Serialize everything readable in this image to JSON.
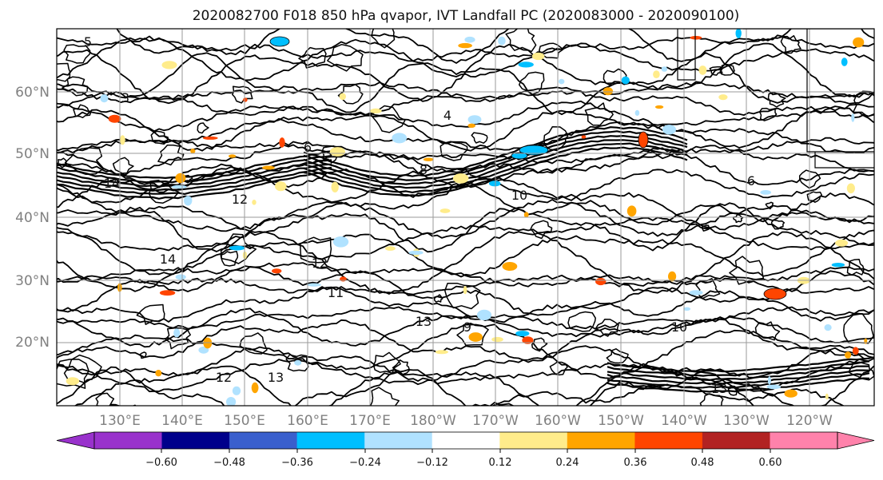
{
  "title": "2020082700 F018 850 hPa qvapor, IVT Landfall PC (2020083000 - 2020090100)",
  "map": {
    "lat_labels": [
      "20°N",
      "30°N",
      "40°N",
      "50°N",
      "60°N"
    ],
    "lon_labels": [
      "130°E",
      "140°E",
      "150°E",
      "160°E",
      "170°E",
      "180°W",
      "170°W",
      "160°W",
      "150°W",
      "140°W",
      "130°W",
      "120°W"
    ],
    "contour_labels": [
      "5",
      "3",
      "4",
      "6",
      "8",
      "10",
      "12",
      "14",
      "13",
      "9",
      "12",
      "14",
      "13",
      "10",
      "11",
      "6",
      "12",
      "13"
    ]
  },
  "colorbar": {
    "colors": [
      "#9932cc",
      "#00008b",
      "#3a5fcd",
      "#00bfff",
      "#b0e2ff",
      "#ffffff",
      "#ffec8b",
      "#ffa500",
      "#ff4500",
      "#b22222",
      "#ff82ab"
    ],
    "tick_labels": [
      "−0.60",
      "−0.48",
      "−0.36",
      "−0.24",
      "−0.12",
      "0.12",
      "0.24",
      "0.36",
      "0.48",
      "0.60"
    ]
  }
}
